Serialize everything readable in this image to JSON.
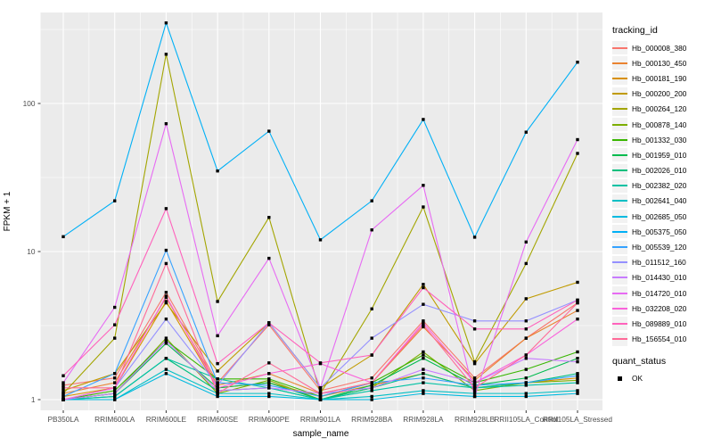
{
  "chart_data": {
    "type": "line",
    "xlabel": "sample_name",
    "ylabel": "FPKM + 1",
    "y_scale": "log10",
    "grid": true,
    "panel_bg": "#EBEBEB",
    "grid_color": "#FFFFFF",
    "axis_text_color": "#4D4D4D",
    "key_bg": "#F2F2F2",
    "point_color": "#000000",
    "point_shape": "square",
    "y_ticks": [
      {
        "value": 1,
        "label": "1"
      },
      {
        "value": 10,
        "label": "10"
      },
      {
        "value": 100,
        "label": "100"
      }
    ],
    "y_minor_ticks": [
      3.162,
      31.62,
      316.2
    ],
    "ylim": [
      0.85,
      410
    ],
    "legend_position": "right",
    "legend": {
      "tracking_title": "tracking_id",
      "quant_title": "quant_status",
      "quant_items": [
        "OK"
      ]
    },
    "categories": [
      "PB350LA",
      "RRIM600LA",
      "RRIM600LE",
      "RRIM600SE",
      "RRIM600PE",
      "RRIM901LA",
      "RRIM928BA",
      "RRIM928LA",
      "RRIM928LB",
      "RRII105LA_Control",
      "RRII105LA_Stressed"
    ],
    "series": [
      {
        "name": "Hb_000008_380",
        "color": "#F8766D",
        "values": [
          1.25,
          1.4,
          5.3,
          1.3,
          3.2,
          1.15,
          1.4,
          3.4,
          1.4,
          2.6,
          4.5
        ]
      },
      {
        "name": "Hb_000130_450",
        "color": "#EA8331",
        "values": [
          1.1,
          1.3,
          4.9,
          1.25,
          1.5,
          1.1,
          1.3,
          3.1,
          1.35,
          2.6,
          4.0
        ]
      },
      {
        "name": "Hb_000181_190",
        "color": "#D89000",
        "values": [
          1.05,
          1.2,
          4.6,
          1.2,
          1.3,
          1.05,
          1.25,
          1.5,
          1.2,
          1.3,
          1.4
        ]
      },
      {
        "name": "Hb_000200_200",
        "color": "#C09B00",
        "values": [
          1.15,
          1.5,
          4.5,
          1.56,
          3.3,
          1.2,
          2.0,
          6.0,
          1.75,
          4.8,
          6.2
        ]
      },
      {
        "name": "Hb_000264_120",
        "color": "#A3A500",
        "values": [
          1.1,
          2.6,
          215,
          4.6,
          17,
          1.1,
          4.1,
          20,
          1.8,
          8.3,
          46
        ]
      },
      {
        "name": "Hb_000878_140",
        "color": "#7CAE00",
        "values": [
          1.0,
          1.1,
          2.6,
          1.1,
          1.35,
          1.0,
          1.2,
          2.1,
          1.15,
          1.3,
          1.35
        ]
      },
      {
        "name": "Hb_001332_030",
        "color": "#39B600",
        "values": [
          1.0,
          1.15,
          2.5,
          1.38,
          1.38,
          1.05,
          1.3,
          2.0,
          1.3,
          1.6,
          2.1
        ]
      },
      {
        "name": "Hb_001959_010",
        "color": "#00BB4E",
        "values": [
          1.0,
          1.1,
          2.4,
          1.2,
          1.3,
          1.0,
          1.25,
          1.9,
          1.25,
          1.4,
          1.9
        ]
      },
      {
        "name": "Hb_002026_010",
        "color": "#00BF7D",
        "values": [
          1.0,
          1.05,
          1.9,
          1.15,
          1.2,
          1.0,
          1.2,
          1.5,
          1.2,
          1.3,
          1.5
        ]
      },
      {
        "name": "Hb_002382_020",
        "color": "#00C1A3",
        "values": [
          1.0,
          1.05,
          1.9,
          1.38,
          1.2,
          1.0,
          1.15,
          1.3,
          1.2,
          1.25,
          1.3
        ]
      },
      {
        "name": "Hb_002641_040",
        "color": "#00BFC4",
        "values": [
          1.0,
          1.0,
          1.6,
          1.1,
          1.1,
          1.0,
          1.05,
          1.15,
          1.1,
          1.1,
          1.15
        ]
      },
      {
        "name": "Hb_002685_050",
        "color": "#00BAE0",
        "values": [
          1.0,
          1.0,
          1.5,
          1.05,
          1.05,
          1.0,
          1.0,
          1.1,
          1.05,
          1.05,
          1.1
        ]
      },
      {
        "name": "Hb_005375_050",
        "color": "#00B0F6",
        "values": [
          12.6,
          22,
          350,
          35,
          65,
          12,
          22,
          78,
          12.5,
          64,
          190
        ]
      },
      {
        "name": "Hb_005539_120",
        "color": "#35A2FF",
        "values": [
          1.05,
          1.5,
          10.2,
          1.3,
          1.25,
          1.05,
          1.3,
          1.4,
          1.25,
          1.3,
          1.45
        ]
      },
      {
        "name": "Hb_011512_160",
        "color": "#9590FF",
        "values": [
          1.0,
          1.2,
          3.5,
          1.25,
          3.3,
          1.2,
          2.6,
          4.4,
          3.4,
          3.4,
          4.7
        ]
      },
      {
        "name": "Hb_014430_010",
        "color": "#C77CFF",
        "values": [
          1.0,
          1.1,
          2.5,
          1.15,
          1.2,
          1.1,
          1.2,
          1.6,
          1.3,
          1.9,
          1.8
        ]
      },
      {
        "name": "Hb_014720_010",
        "color": "#E76BF3",
        "values": [
          1.3,
          4.2,
          73,
          2.7,
          9.0,
          1.2,
          14,
          28,
          1.05,
          11.6,
          57
        ]
      },
      {
        "name": "Hb_032208_020",
        "color": "#FA62DB",
        "values": [
          1.0,
          1.2,
          5.0,
          1.2,
          1.5,
          1.75,
          1.3,
          3.3,
          1.3,
          2.0,
          3.5
        ]
      },
      {
        "name": "Hb_089889_010",
        "color": "#FF62BC",
        "values": [
          1.45,
          3.2,
          19.5,
          1.75,
          3.3,
          1.77,
          2.0,
          5.7,
          3.0,
          3.0,
          4.7
        ]
      },
      {
        "name": "Hb_156554_010",
        "color": "#FF6A98",
        "values": [
          1.2,
          1.2,
          8.3,
          1.1,
          1.77,
          1.1,
          1.3,
          3.2,
          1.2,
          2.0,
          4.5
        ]
      }
    ]
  }
}
